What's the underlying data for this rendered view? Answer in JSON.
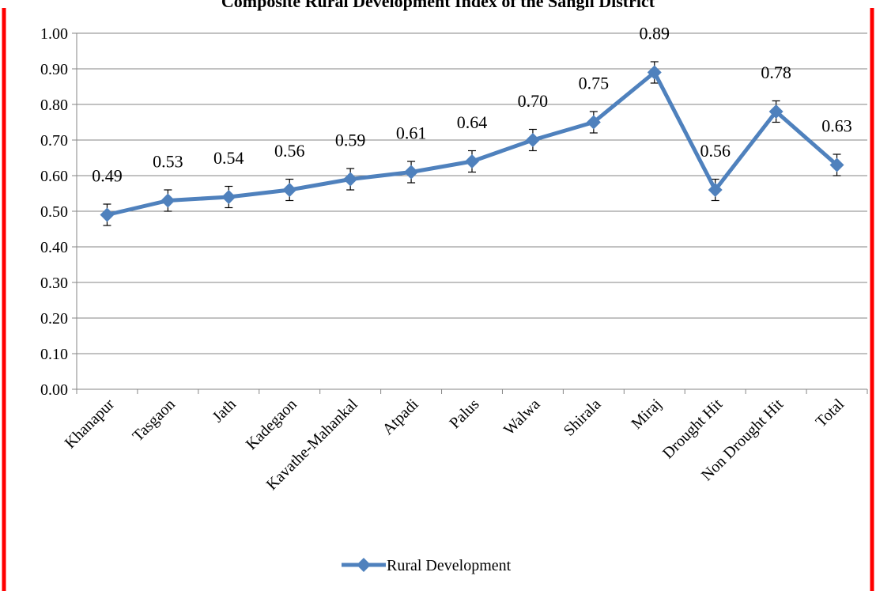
{
  "chart_data": {
    "type": "line",
    "title": "Composite Rural Development Index of the Sangli District",
    "xlabel": "",
    "ylabel": "",
    "categories": [
      "Khanapur",
      "Tasgaon",
      "Jath",
      "Kadegaon",
      "Kavathe-Mahankal",
      "Atpadi",
      "Palus",
      "Walwa",
      "Shirala",
      "Miraj",
      "Drought Hit",
      "Non Drought Hit",
      "Total"
    ],
    "series": [
      {
        "name": "Rural Development",
        "values": [
          0.49,
          0.53,
          0.54,
          0.56,
          0.59,
          0.61,
          0.64,
          0.7,
          0.75,
          0.89,
          0.56,
          0.78,
          0.63
        ],
        "labels": [
          "0.49",
          "0.53",
          "0.54",
          "0.56",
          "0.59",
          "0.61",
          "0.64",
          "0.70",
          "0.75",
          "0.89",
          "0.56",
          "0.78",
          "0.63"
        ],
        "error": 0.03,
        "color": "#4F81BD"
      }
    ],
    "ylim": [
      0,
      1
    ],
    "yticks": [
      "0.00",
      "0.10",
      "0.20",
      "0.30",
      "0.40",
      "0.50",
      "0.60",
      "0.70",
      "0.80",
      "0.90",
      "1.00"
    ],
    "grid": true,
    "legend_position": "bottom",
    "frame_color": "#FF0000"
  }
}
